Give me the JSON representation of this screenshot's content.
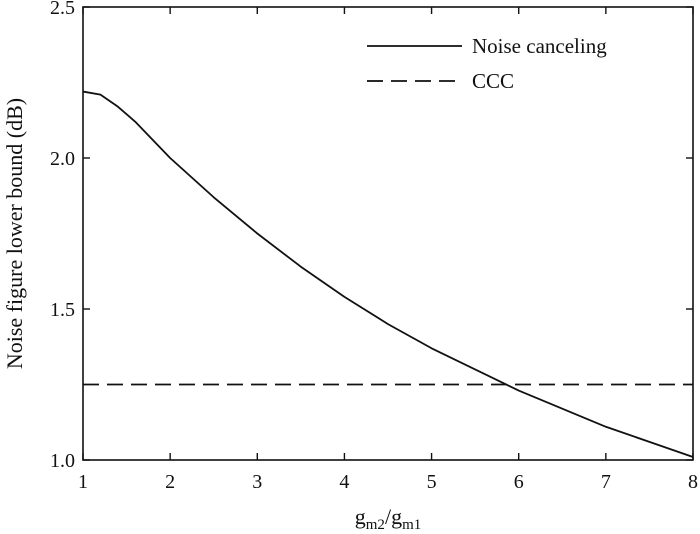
{
  "chart_data": {
    "type": "line",
    "title": "",
    "xlabel": {
      "main": "g",
      "sub1": "m2",
      "slash": "/",
      "sub2": "m1"
    },
    "ylabel": "Noise figure lower bound (dB)",
    "xlim": [
      1,
      8
    ],
    "ylim": [
      1.0,
      2.5
    ],
    "x_ticks": [
      1,
      2,
      3,
      4,
      5,
      6,
      7,
      8
    ],
    "x_tick_labels": [
      "1",
      "2",
      "3",
      "4",
      "5",
      "6",
      "7",
      "8"
    ],
    "y_ticks": [
      1.0,
      1.5,
      2.0,
      2.5
    ],
    "y_tick_labels": [
      "1.0",
      "1.5",
      "2.0",
      "2.5"
    ],
    "grid": false,
    "legend_position": "top-right",
    "series": [
      {
        "name": "Noise canceling",
        "style": "solid",
        "x": [
          1,
          1.2,
          1.4,
          1.6,
          1.8,
          2,
          2.5,
          3,
          3.5,
          4,
          4.5,
          5,
          5.5,
          6,
          6.5,
          7,
          7.5,
          8
        ],
        "y": [
          2.22,
          2.21,
          2.17,
          2.12,
          2.06,
          2.0,
          1.87,
          1.75,
          1.64,
          1.54,
          1.45,
          1.37,
          1.3,
          1.23,
          1.17,
          1.11,
          1.06,
          1.01
        ]
      },
      {
        "name": "CCC",
        "style": "dashed",
        "x": [
          1,
          8
        ],
        "y": [
          1.25,
          1.25
        ]
      }
    ]
  }
}
